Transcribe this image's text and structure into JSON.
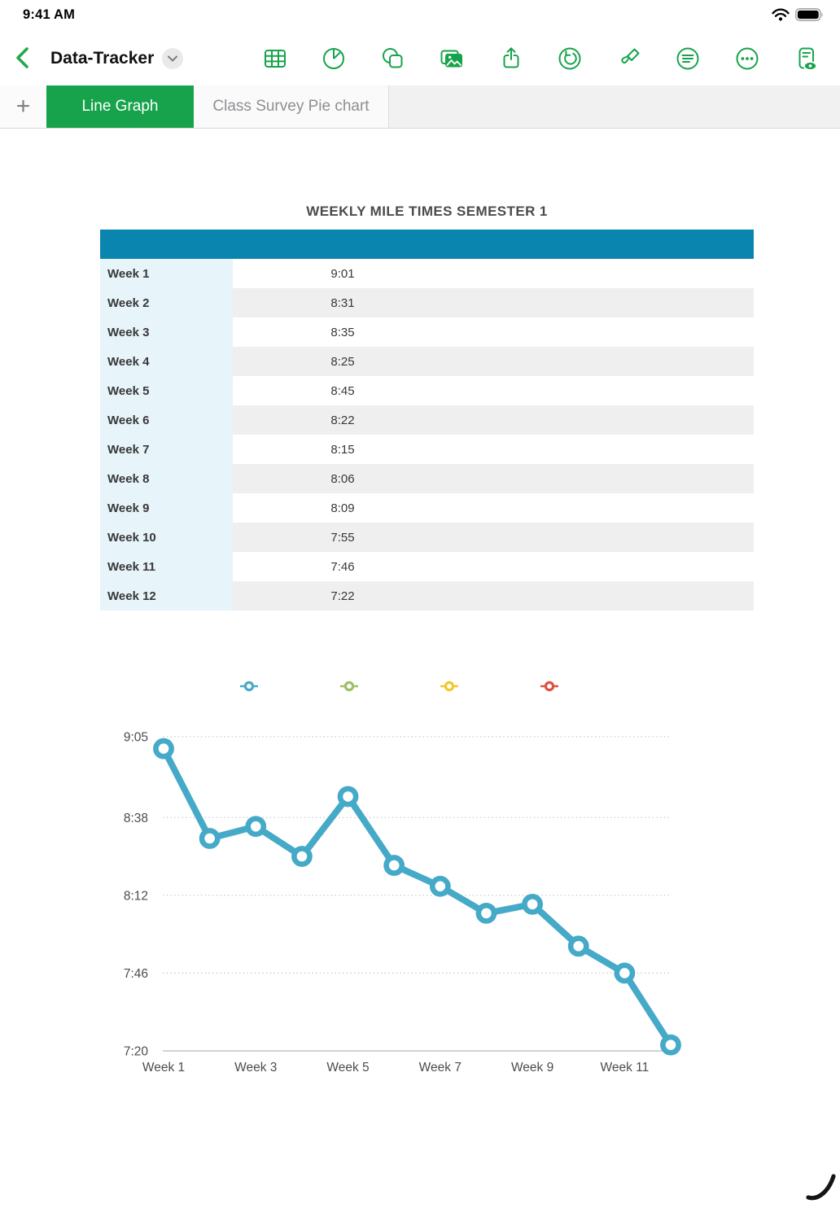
{
  "status_bar": {
    "time": "9:41 AM",
    "icons": [
      "wifi-icon",
      "battery-icon"
    ],
    "battery_level": "full"
  },
  "toolbar": {
    "title": "Data-Tracker",
    "icons": [
      "back-icon",
      "title-dropdown-icon",
      "table-icon",
      "pie-chart-icon",
      "shapes-icon",
      "photos-icon",
      "share-icon",
      "undo-icon",
      "paintbrush-icon",
      "filter-lines-icon",
      "ellipsis-icon",
      "document-eye-icon"
    ]
  },
  "tabs": {
    "add_label": "+",
    "items": [
      {
        "label": "Line Graph",
        "active": true
      },
      {
        "label": "Class Survey Pie chart",
        "active": false
      }
    ]
  },
  "table": {
    "title": "WEEKLY MILE TIMES SEMESTER 1",
    "rows": [
      {
        "label": "Week 1",
        "value": "9:01"
      },
      {
        "label": "Week 2",
        "value": "8:31"
      },
      {
        "label": "Week 3",
        "value": "8:35"
      },
      {
        "label": "Week 4",
        "value": "8:25"
      },
      {
        "label": "Week 5",
        "value": "8:45"
      },
      {
        "label": "Week 6",
        "value": "8:22"
      },
      {
        "label": "Week 7",
        "value": "8:15"
      },
      {
        "label": "Week 8",
        "value": "8:06"
      },
      {
        "label": "Week 9",
        "value": "8:09"
      },
      {
        "label": "Week 10",
        "value": "7:55"
      },
      {
        "label": "Week 11",
        "value": "7:46"
      },
      {
        "label": "Week 12",
        "value": "7:22"
      }
    ]
  },
  "chart_data": {
    "type": "line",
    "title": "",
    "xlabel": "",
    "ylabel": "",
    "categories": [
      "Week 1",
      "Week 2",
      "Week 3",
      "Week 4",
      "Week 5",
      "Week 6",
      "Week 7",
      "Week 8",
      "Week 9",
      "Week 10",
      "Week 11",
      "Week 12"
    ],
    "values": [
      "9:01",
      "8:31",
      "8:35",
      "8:25",
      "8:45",
      "8:22",
      "8:15",
      "8:06",
      "8:09",
      "7:55",
      "7:46",
      "7:22"
    ],
    "x_tick_labels": [
      "Week 1",
      "Week 3",
      "Week 5",
      "Week 7",
      "Week 9",
      "Week 11"
    ],
    "y_tick_labels": [
      "9:05",
      "8:38",
      "8:12",
      "7:46",
      "7:20"
    ],
    "ylim": [
      "7:20",
      "9:05"
    ],
    "grid": "horizontal-dotted",
    "legend_position": "top",
    "line_color": "#45a9c8",
    "legend_marker_colors": [
      "#4aa9c8",
      "#9ec065",
      "#f6c62e",
      "#df5140"
    ]
  },
  "annotation": {
    "type": "pencil-stroke",
    "color": "#151515"
  },
  "colors": {
    "accent_green": "#17a34b",
    "header_teal": "#0a85af",
    "row_stripe": "#efefef",
    "label_col": "#e7f4fa",
    "tab_inactive_text": "#8f8f92"
  }
}
